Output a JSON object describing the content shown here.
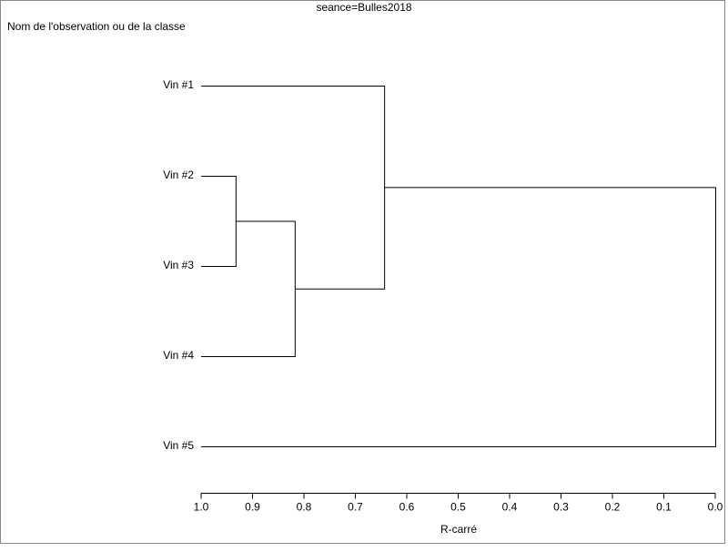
{
  "chart_data": {
    "type": "dendrogram",
    "title": "seance=Bulles2018",
    "y_label": "Nom de l'observation ou de la classe",
    "x_label": "R-carré",
    "leaves": [
      "Vin #1",
      "Vin #2",
      "Vin #3",
      "Vin #4",
      "Vin #5"
    ],
    "merges": [
      {
        "nodes": [
          1,
          2
        ],
        "value": 0.933
      },
      {
        "nodes": [
          5,
          3
        ],
        "value": 0.818
      },
      {
        "nodes": [
          0,
          6
        ],
        "value": 0.644
      },
      {
        "nodes": [
          7,
          4
        ],
        "value": 0.0
      }
    ],
    "xlim": [
      1,
      0
    ],
    "xticks": [
      {
        "value": 1,
        "label": "1.0"
      },
      0.9,
      0.8,
      0.7,
      0.6,
      0.5,
      0.4,
      0.3,
      0.2,
      0.1,
      {
        "value": 0,
        "label": "0.0"
      }
    ],
    "color": "#000000"
  }
}
